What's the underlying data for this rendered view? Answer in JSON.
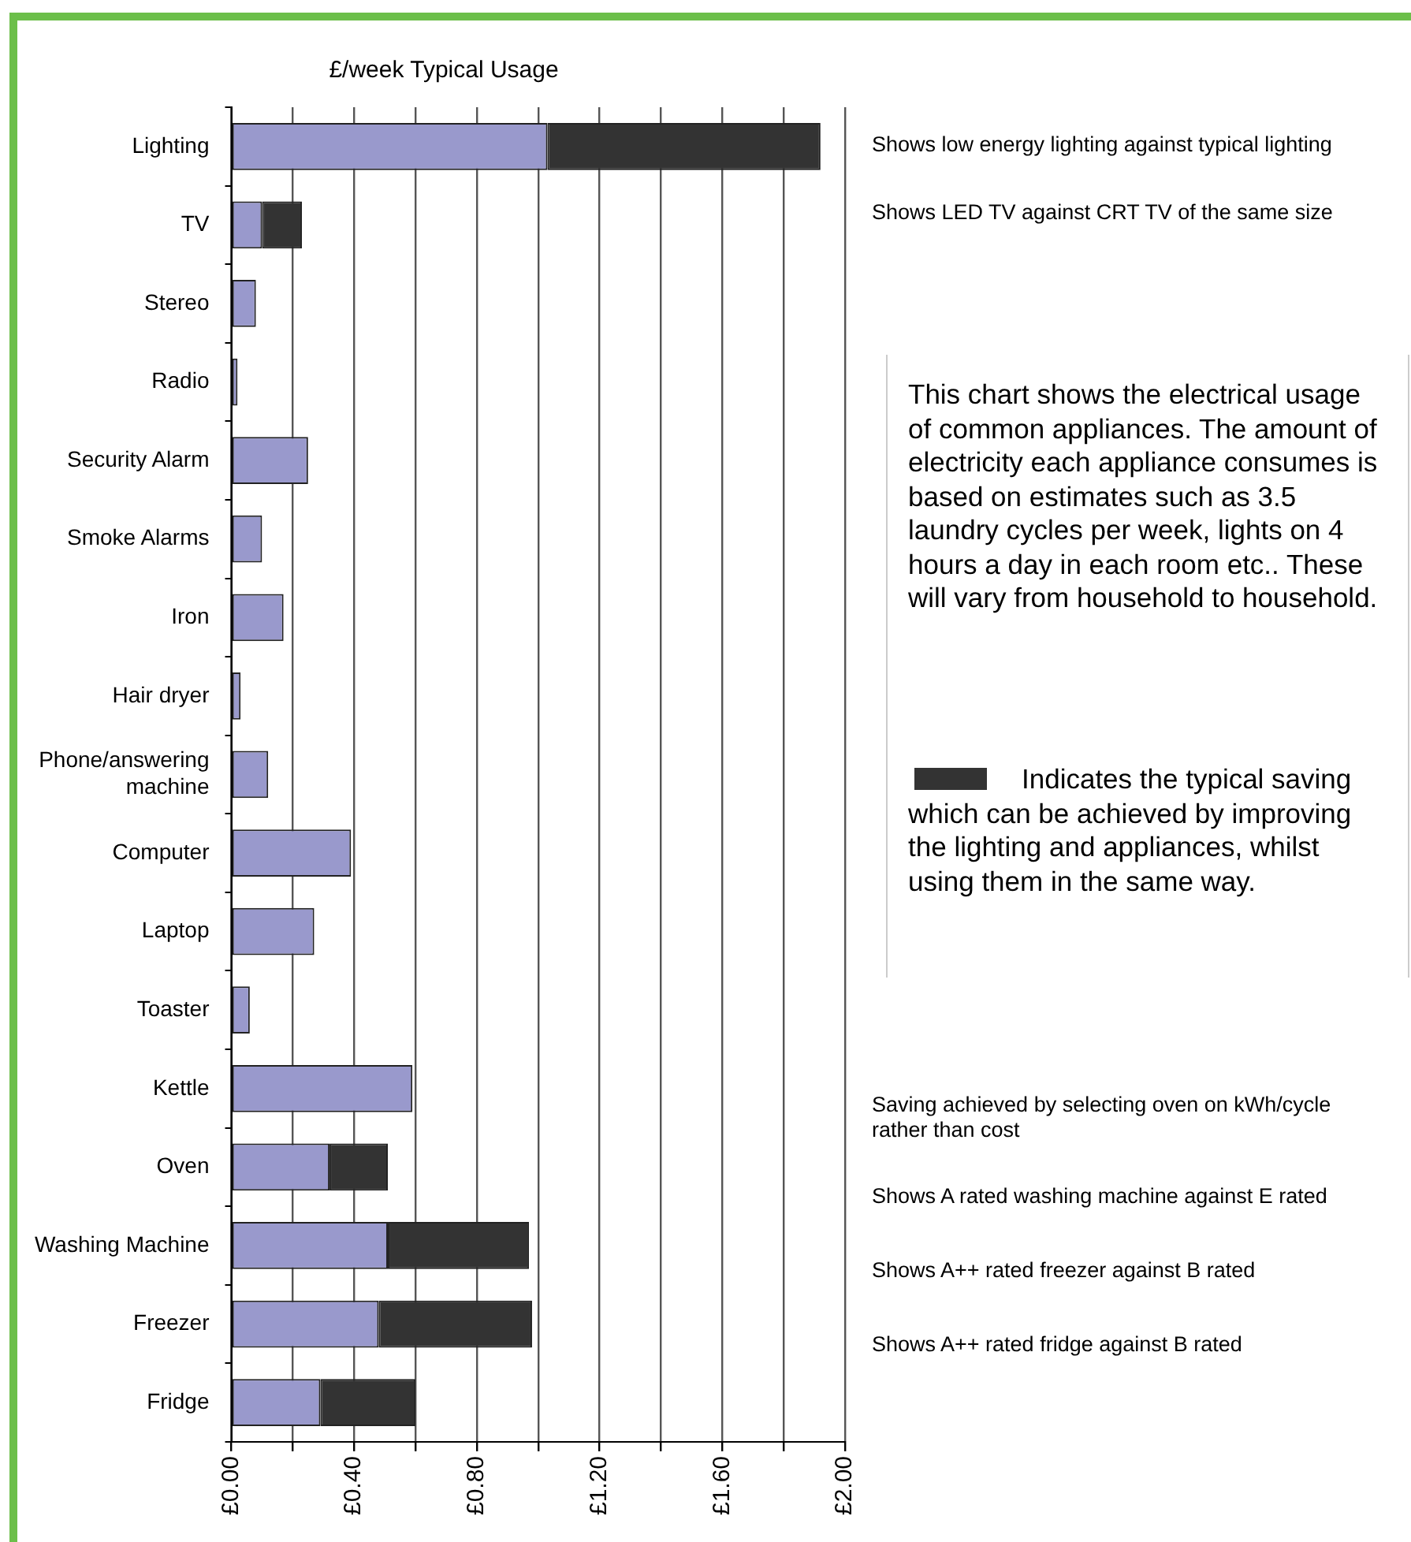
{
  "chart_data": {
    "type": "bar",
    "orientation": "horizontal",
    "stacked": true,
    "title": "£/week Typical Usage",
    "categories": [
      "Lighting",
      "TV",
      "Stereo",
      "Radio",
      "Security Alarm",
      "Smoke Alarms",
      "Iron",
      "Hair dryer",
      "Phone/answering machine",
      "Computer",
      "Laptop",
      "Toaster",
      "Kettle",
      "Oven",
      "Washing Machine",
      "Freezer",
      "Fridge"
    ],
    "series": [
      {
        "color": "#9999cc",
        "values": [
          1.03,
          0.1,
          0.08,
          0.02,
          0.25,
          0.1,
          0.17,
          0.03,
          0.12,
          0.39,
          0.27,
          0.06,
          0.59,
          0.32,
          0.51,
          0.48,
          0.29
        ]
      },
      {
        "color": "#333333",
        "values": [
          0.89,
          0.13,
          null,
          null,
          null,
          null,
          null,
          null,
          null,
          null,
          null,
          null,
          null,
          0.19,
          0.46,
          0.5,
          0.31
        ]
      }
    ],
    "xlim": [
      0,
      2
    ],
    "xticks": [
      {
        "value": 0,
        "label": "£0.00"
      },
      {
        "value": 0.2,
        "label": null
      },
      {
        "value": 0.4,
        "label": "£0.40"
      },
      {
        "value": 0.6,
        "label": null
      },
      {
        "value": 0.8,
        "label": "£0.80"
      },
      {
        "value": 1.0,
        "label": null
      },
      {
        "value": 1.2,
        "label": "£1.20"
      },
      {
        "value": 1.4,
        "label": null
      },
      {
        "value": 1.6,
        "label": "£1.60"
      },
      {
        "value": 1.8,
        "label": null
      },
      {
        "value": 2.0,
        "label": "£2.00"
      }
    ],
    "grid": "x",
    "legend": false,
    "annotations": [
      "Shows low energy lighting against typical lighting",
      "Shows LED TV against CRT TV of the same size",
      "This chart shows the electrical usage of common appliances. The amount of electricity each appliance consumes is based on estimates such as 3.5 laundry cycles per week, lights on 4 hours a day in each room etc.. These will vary from household to household.",
      "Indicates the typical saving which can be achieved by improving the lighting and appliances, whilst using them in the same  way.",
      "Saving achieved by selecting oven on kWh/cycle rather than cost",
      "Shows A rated washing machine against E rated",
      "Shows A++ rated freezer against B rated",
      "Shows A++ rated fridge against B rated"
    ]
  }
}
